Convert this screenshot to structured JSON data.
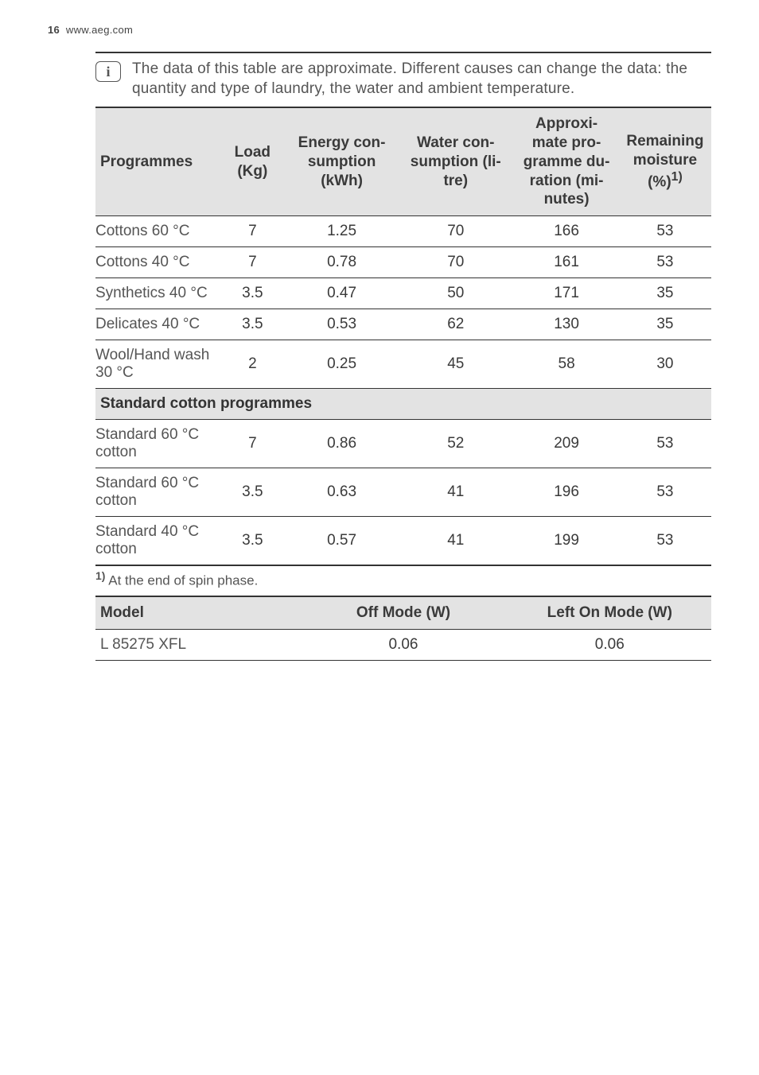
{
  "header": {
    "page_number": "16",
    "url": "www.aeg.com"
  },
  "note": {
    "icon_glyph": "i",
    "text": "The data of this table are approximate. Different causes can change the data: the quantity and type of laundry, the water and ambient temperature."
  },
  "main_table": {
    "columns": {
      "programmes": "Programmes",
      "load": "Load\n(Kg)",
      "energy": "Energy con-\nsumption\n(kWh)",
      "water": "Water con-\nsumption (li-\ntre)",
      "duration": "Approxi-\nmate pro-\ngramme du-\nration (mi-\nnutes)",
      "moisture": "Remaining\nmoisture\n(%)",
      "moisture_sup": "1)"
    },
    "rows": [
      {
        "programme": "Cottons 60 °C",
        "load": "7",
        "energy": "1.25",
        "water": "70",
        "duration": "166",
        "moisture": "53"
      },
      {
        "programme": "Cottons 40 °C",
        "load": "7",
        "energy": "0.78",
        "water": "70",
        "duration": "161",
        "moisture": "53"
      },
      {
        "programme": "Synthetics 40 °C",
        "load": "3.5",
        "energy": "0.47",
        "water": "50",
        "duration": "171",
        "moisture": "35"
      },
      {
        "programme": "Delicates 40 °C",
        "load": "3.5",
        "energy": "0.53",
        "water": "62",
        "duration": "130",
        "moisture": "35"
      },
      {
        "programme": "Wool/Hand wash 30 °C",
        "load": "2",
        "energy": "0.25",
        "water": "45",
        "duration": "58",
        "moisture": "30"
      }
    ],
    "section_label": "Standard cotton programmes",
    "section_rows": [
      {
        "programme": "Standard 60 °C cotton",
        "load": "7",
        "energy": "0.86",
        "water": "52",
        "duration": "209",
        "moisture": "53"
      },
      {
        "programme": "Standard 60 °C cotton",
        "load": "3.5",
        "energy": "0.63",
        "water": "41",
        "duration": "196",
        "moisture": "53"
      },
      {
        "programme": "Standard 40 °C cotton",
        "load": "3.5",
        "energy": "0.57",
        "water": "41",
        "duration": "199",
        "moisture": "53"
      }
    ]
  },
  "footnote": {
    "marker": "1)",
    "text": " At the end of spin phase."
  },
  "mode_table": {
    "columns": {
      "model": "Model",
      "off": "Off Mode (W)",
      "left_on": "Left On Mode (W)"
    },
    "rows": [
      {
        "model": "L 85275 XFL",
        "off": "0.06",
        "left_on": "0.06"
      }
    ]
  }
}
